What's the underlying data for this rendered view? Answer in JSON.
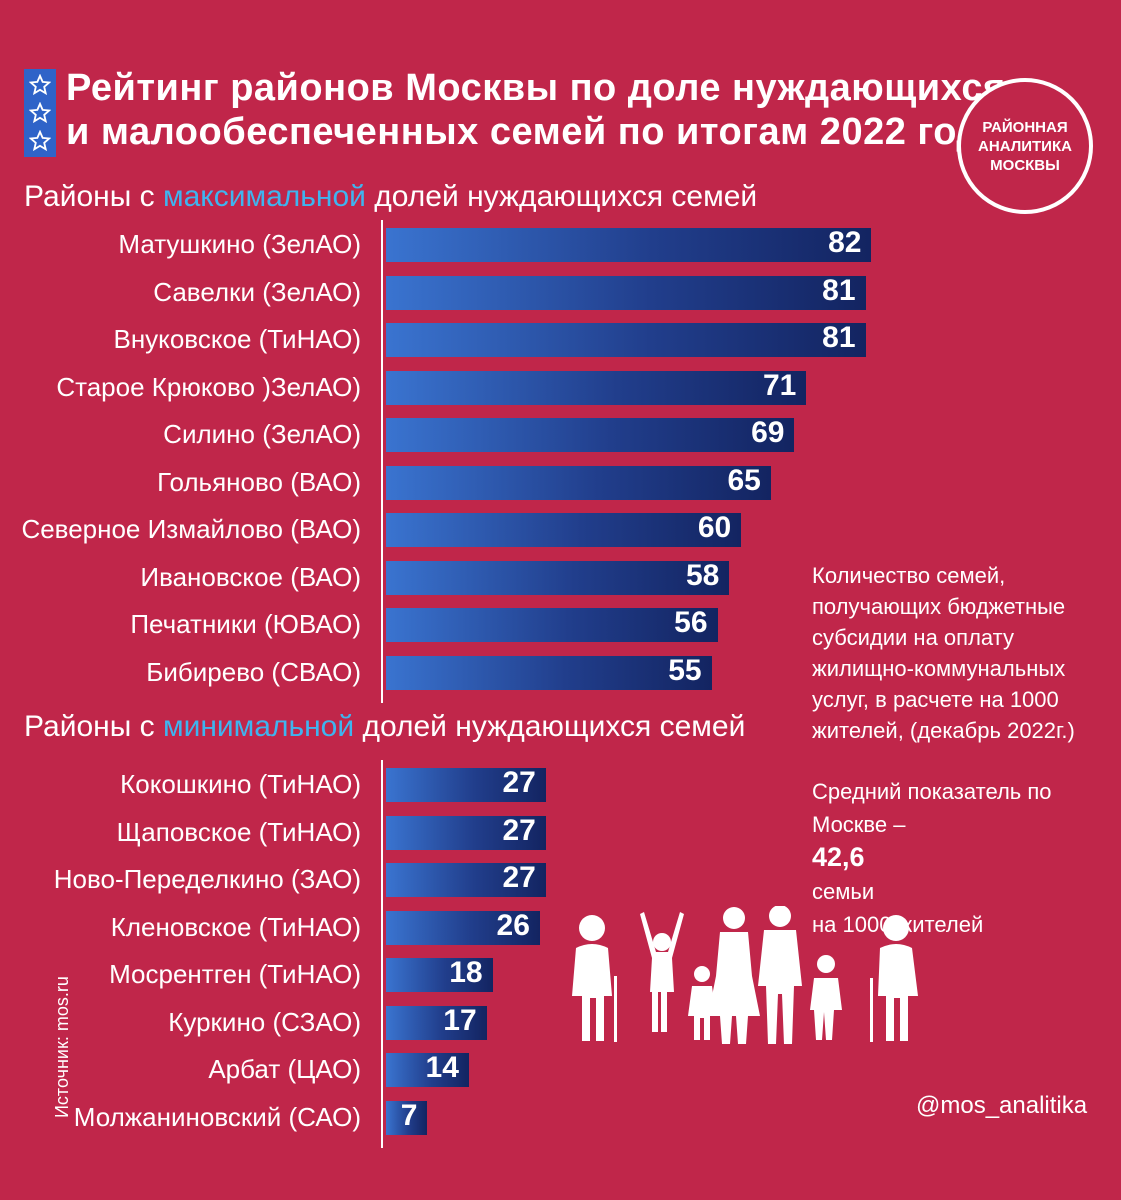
{
  "title": {
    "line1": "Рейтинг районов Москвы по доле нуждающихся",
    "line2": "и малообеспеченных семей по итогам 2022 года"
  },
  "logo": {
    "line1": "РАЙОННАЯ",
    "line2": "АНАЛИТИКА",
    "line3": "МОСКВЫ"
  },
  "sections": {
    "max": {
      "before": "Районы с ",
      "highlight": "максимальной",
      "after": " долей нуждающихся семей"
    },
    "min": {
      "before": "Районы с ",
      "highlight": "минимальной",
      "after": " долей нуждающихся семей"
    }
  },
  "chart_data": [
    {
      "type": "bar",
      "orientation": "horizontal",
      "categories": [
        "Матушкино (ЗелАО)",
        "Савелки (ЗелАО)",
        "Внуковское (ТиНАО)",
        "Старое Крюково )ЗелАО)",
        "Силино (ЗелАО)",
        "Гольяново (ВАО)",
        "Северное Измайлово (ВАО)",
        "Ивановское (ВАО)",
        "Печатники (ЮВАО)",
        "Бибирево (СВАО)"
      ],
      "values": [
        82,
        81,
        81,
        71,
        69,
        65,
        60,
        58,
        56,
        55
      ],
      "value_labels": [
        "82",
        "81",
        "81",
        "71",
        "69",
        "65",
        "60",
        "58",
        "56",
        "55"
      ],
      "colors": {
        "bar_start": "#3a74d0",
        "bar_end": "#132461"
      }
    },
    {
      "type": "bar",
      "orientation": "horizontal",
      "categories": [
        "Кокошкино (ТиНАО)",
        "Щаповское (ТиНАО)",
        "Ново-Переделкино (ЗАО)",
        "Кленовское (ТиНАО)",
        "Мосрентген (ТиНАО)",
        "Куркино (СЗАО)",
        "Арбат (ЦАО)",
        "Молжаниновский (САО)"
      ],
      "values": [
        27,
        27,
        27,
        26,
        18,
        17,
        14,
        7
      ],
      "value_labels": [
        "27",
        "27",
        "27",
        "26",
        "18",
        "17",
        "14",
        "7"
      ],
      "colors": {
        "bar_start": "#3a74d0",
        "bar_end": "#132461"
      }
    }
  ],
  "note": {
    "lines": [
      "Количество семей,",
      "получающих бюджетные",
      "субсидии на оплату",
      "жилищно-коммунальных",
      "услуг, в расчете на 1000",
      "жителей, (декабрь 2022г.)"
    ]
  },
  "average": {
    "line1": "Средний показатель по",
    "line2_before": "Москве – ",
    "value": "42,6",
    "line2_after": " семьи",
    "line3": "на 1000 жителей"
  },
  "source": "Источник: mos.ru",
  "handle": "@mos_analitika",
  "colors": {
    "background": "#c0264a",
    "accent": "#3fb4ef",
    "stars_box": "#2f63c8"
  },
  "icons": [
    "star-icon",
    "family-icon"
  ]
}
